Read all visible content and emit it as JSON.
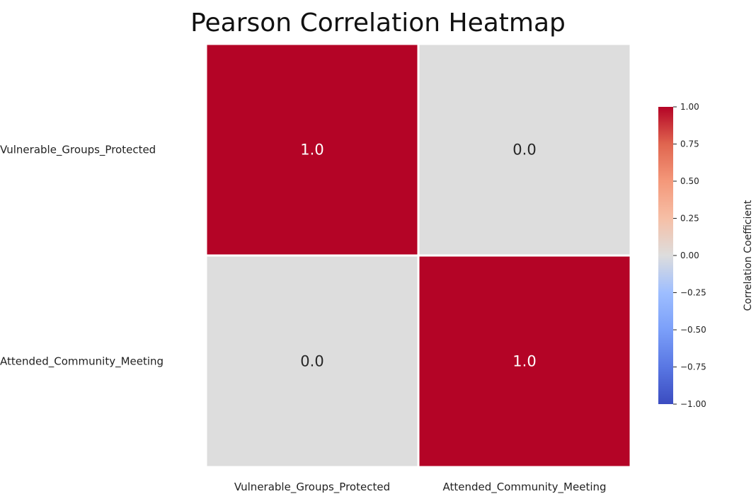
{
  "chart_data": {
    "type": "heatmap",
    "title": "Pearson Correlation Heatmap",
    "row_labels": [
      "Vulnerable_Groups_Protected",
      "Attended_Community_Meeting"
    ],
    "col_labels": [
      "Vulnerable_Groups_Protected",
      "Attended_Community_Meeting"
    ],
    "values": [
      [
        1.0,
        0.0
      ],
      [
        0.0,
        1.0
      ]
    ],
    "cell_text": [
      [
        "1.0",
        "0.0"
      ],
      [
        "0.0",
        "1.0"
      ]
    ],
    "colormap": "coolwarm",
    "vmin": -1.0,
    "vmax": 1.0,
    "colorbar": {
      "label": "Correlation Coefficient",
      "ticks": [
        1.0,
        0.75,
        0.5,
        0.25,
        0.0,
        -0.25,
        -0.5,
        -0.75,
        -1.0
      ],
      "tick_labels": [
        "1.00",
        "0.75",
        "0.50",
        "0.25",
        "0.00",
        "−0.25",
        "−0.50",
        "−0.75",
        "−1.00"
      ]
    }
  }
}
